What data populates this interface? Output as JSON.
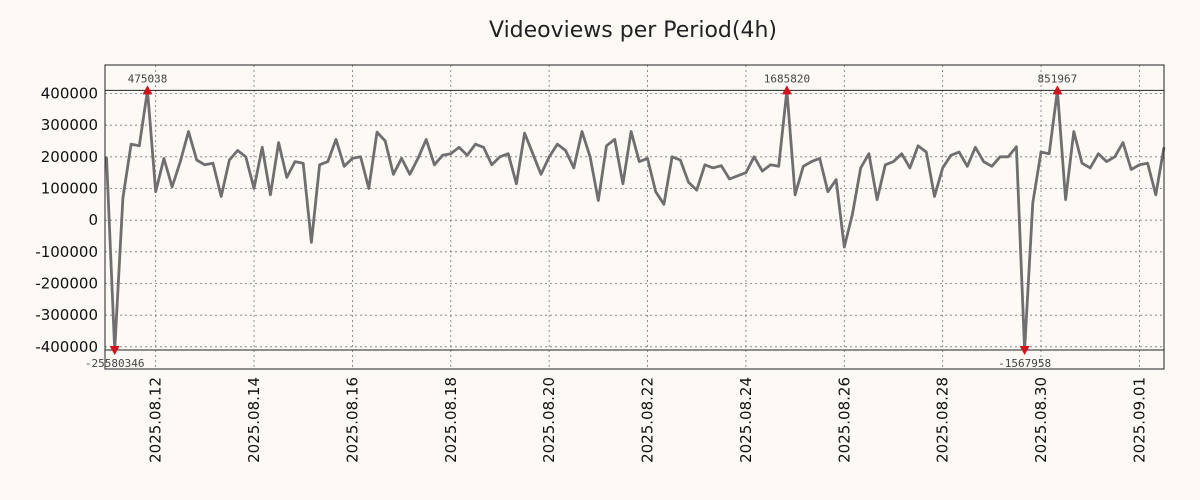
{
  "chart_data": {
    "type": "line",
    "title": "Videoviews per Period(4h)",
    "xlabel": "",
    "ylabel": "",
    "ylim": [
      -470000,
      490000
    ],
    "grid": true,
    "y_ticks": [
      400000,
      300000,
      200000,
      100000,
      0,
      -100000,
      -200000,
      -300000,
      -400000
    ],
    "y_tick_labels": [
      "400000",
      "300000",
      "200000",
      "100000",
      "0",
      "-100000",
      "-200000",
      "-300000",
      "-400000"
    ],
    "x_ticks": [
      {
        "day": 1,
        "label": "2025.08.12"
      },
      {
        "day": 3,
        "label": "2025.08.14"
      },
      {
        "day": 5,
        "label": "2025.08.16"
      },
      {
        "day": 7,
        "label": "2025.08.18"
      },
      {
        "day": 9,
        "label": "2025.08.20"
      },
      {
        "day": 11,
        "label": "2025.08.22"
      },
      {
        "day": 13,
        "label": "2025.08.24"
      },
      {
        "day": 15,
        "label": "2025.08.26"
      },
      {
        "day": 17,
        "label": "2025.08.28"
      },
      {
        "day": 19,
        "label": "2025.08.30"
      },
      {
        "day": 21,
        "label": "2025.09.01"
      }
    ],
    "x_range_days": [
      -0.03,
      21.5
    ],
    "period_hours": 4,
    "reference_lines": [
      410000,
      -410000
    ],
    "series": [
      {
        "name": "Videoviews",
        "color": "#6f6f6f",
        "values": [
          200000,
          -410000,
          70000,
          240000,
          235000,
          410000,
          90000,
          195000,
          105000,
          185000,
          280000,
          190000,
          175000,
          180000,
          75000,
          190000,
          220000,
          200000,
          100000,
          230000,
          80000,
          245000,
          135000,
          185000,
          180000,
          -70000,
          175000,
          185000,
          255000,
          170000,
          195000,
          200000,
          100000,
          278000,
          250000,
          145000,
          195000,
          145000,
          195000,
          255000,
          175000,
          205000,
          210000,
          230000,
          205000,
          240000,
          230000,
          175000,
          200000,
          210000,
          115000,
          275000,
          210000,
          145000,
          200000,
          240000,
          220000,
          165000,
          280000,
          200000,
          62000,
          235000,
          255000,
          115000,
          280000,
          185000,
          195000,
          90000,
          50000,
          200000,
          190000,
          120000,
          95000,
          175000,
          165000,
          172000,
          130000,
          140000,
          150000,
          200000,
          155000,
          175000,
          170000,
          410000,
          80000,
          170000,
          185000,
          195000,
          90000,
          128000,
          -85000,
          20000,
          165000,
          210000,
          65000,
          175000,
          185000,
          210000,
          165000,
          235000,
          215000,
          75000,
          165000,
          205000,
          215000,
          170000,
          230000,
          185000,
          170000,
          200000,
          200000,
          232000,
          -410000,
          55000,
          215000,
          210000,
          410000,
          65000,
          280000,
          180000,
          165000,
          210000,
          185000,
          200000,
          245000,
          160000,
          175000,
          180000,
          80000,
          230000
        ]
      }
    ],
    "annotations": [
      {
        "label": "475038",
        "index": 5,
        "kind": "max"
      },
      {
        "label": "1685820",
        "index": 83,
        "kind": "max"
      },
      {
        "label": "851967",
        "index": 116,
        "kind": "max"
      },
      {
        "label": "-25580346",
        "index": 1,
        "kind": "min"
      },
      {
        "label": "-1567958",
        "index": 112,
        "kind": "min"
      }
    ]
  }
}
